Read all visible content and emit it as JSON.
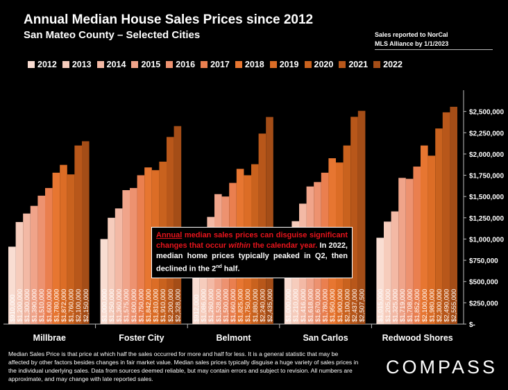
{
  "header": {
    "title": "Annual Median House Sales Prices since 2012",
    "subtitle": "San Mateo County – Selected Cities",
    "note_line1": "Sales reported to NorCal",
    "note_line2": "MLS Alliance by 1/1/2023"
  },
  "callout": {
    "word1": "Annual",
    "part2": " median sales prices can disguise significant changes that occur ",
    "italic": "within",
    "part3": " the calendar year.",
    "part4": " In 2022, median home prices typically peaked in Q2, then declined in the 2",
    "sup": "nd",
    "part5": " half."
  },
  "footer": {
    "text": "Median Sales Price is that price at which half the sales occurred for more and half for less. It is a general statistic that may be affected by other factors besides changes in fair market value. Median sales prices typically disguise a huge variety of sales prices in the individual underlying sales. Data from sources deemed reliable, but may contain errors and subject to revision.  All numbers are approximate, and may change with late reported sales."
  },
  "logo": {
    "text": "COMPASS"
  },
  "chart_data": {
    "type": "bar",
    "ylim": [
      0,
      2750000
    ],
    "y_ticks": [
      0,
      250000,
      500000,
      750000,
      1000000,
      1250000,
      1500000,
      1750000,
      2000000,
      2250000,
      2500000
    ],
    "y_tick_labels": [
      "$-",
      "$250,000",
      "$500,000",
      "$750,000",
      "$1,000,000",
      "$1,250,000",
      "$1,500,000",
      "$1,750,000",
      "$2,000,000",
      "$2,250,000",
      "$2,500,000"
    ],
    "y_axis_side": "right",
    "legend_position": "top",
    "grid": false,
    "categories": [
      "Millbrae",
      "Foster City",
      "Belmont",
      "San Carlos",
      "Redwood Shores"
    ],
    "series": [
      {
        "name": "2012",
        "color": "#f9ddd2",
        "values": [
          910000,
          1000000,
          912000,
          1000000,
          1015000
        ]
      },
      {
        "name": "2013",
        "color": "#f6ccbc",
        "values": [
          1200000,
          1250000,
          1086000,
          1210000,
          1205000
        ]
      },
      {
        "name": "2014",
        "color": "#f3b9a5",
        "values": [
          1300000,
          1360000,
          1260000,
          1416000,
          1325000
        ]
      },
      {
        "name": "2015",
        "color": "#f0a48a",
        "values": [
          1390000,
          1575000,
          1528000,
          1618000,
          1719000
        ]
      },
      {
        "name": "2016",
        "color": "#ed9270",
        "values": [
          1510000,
          1600000,
          1500000,
          1670000,
          1708000
        ]
      },
      {
        "name": "2017",
        "color": "#ea7f4f",
        "values": [
          1600000,
          1750000,
          1660000,
          1780000,
          1852000
        ]
      },
      {
        "name": "2018",
        "color": "#e77631",
        "values": [
          1780000,
          1842000,
          1825000,
          1950000,
          2100000
        ]
      },
      {
        "name": "2019",
        "color": "#dc6d26",
        "values": [
          1872000,
          1810000,
          1750000,
          1900000,
          1980000
        ]
      },
      {
        "name": "2020",
        "color": "#c9621e",
        "values": [
          1760000,
          1910000,
          1880000,
          2100000,
          2300000
        ]
      },
      {
        "name": "2021",
        "color": "#b8571a",
        "values": [
          2100000,
          2200000,
          2240000,
          2437000,
          2490000
        ]
      },
      {
        "name": "2022",
        "color": "#a44d17",
        "values": [
          2150000,
          2328000,
          2435000,
          2507500,
          2555000
        ]
      }
    ],
    "data_labels": [
      [
        "$910,000",
        "$1,200,000",
        "$1,300,000",
        "$1,390,000",
        "$1,510,000",
        "$1,600,000",
        "$1,780,000",
        "$1,872,000",
        "$1,760,000",
        "$2,100,000",
        "$2,150,000"
      ],
      [
        "$1,000,000",
        "$1,250,000",
        "$1,360,000",
        "$1,575,000",
        "$1,600,000",
        "$1,750,000",
        "$1,842,000",
        "$1,810,000",
        "$1,910,000",
        "$2,200,000",
        "$2,328,000"
      ],
      [
        "$912,000",
        "$1,086,000",
        "$1,260,000",
        "$1,528,000",
        "$1,500,000",
        "$1,660,000",
        "$1,825,000",
        "$1,750,000",
        "$1,880,000",
        "$2,240,000",
        "$2,435,000"
      ],
      [
        "$1,000,000",
        "$1,210,000",
        "$1,416,000",
        "$1,618,000",
        "$1,670,000",
        "$1,780,000",
        "$1,950,000",
        "$1,900,000",
        "$2,100,000",
        "$2,437,000",
        "$2,507,500"
      ],
      [
        "$1,015,000",
        "$1,205,000",
        "$1,325,000",
        "$1,719,000",
        "$1,708,000",
        "$1,852,000",
        "$2,100,000",
        "$1,980,000",
        "$2,300,000",
        "$2,490,000",
        "$2,555,000"
      ]
    ]
  }
}
